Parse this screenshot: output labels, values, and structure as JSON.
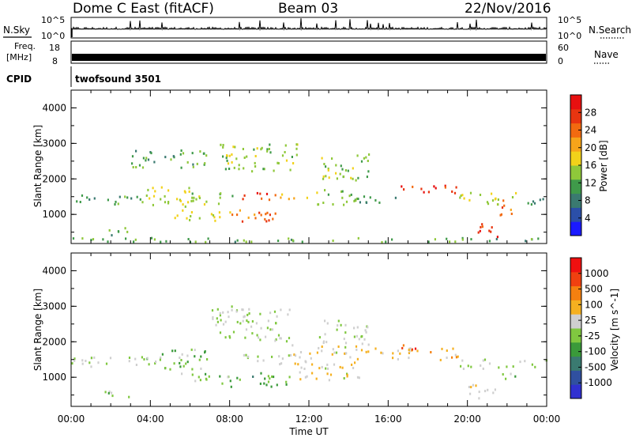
{
  "header": {
    "station": "Dome C East (fitACF)",
    "beam": "Beam 03",
    "date": "22/Nov/2016"
  },
  "panels": {
    "nsky": {
      "label": "N.Sky",
      "ticks_left": [
        "10^5",
        "10^0"
      ],
      "ticks_right": [
        "10^5",
        "10^0"
      ],
      "right_label": "N.Search"
    },
    "freq": {
      "label_top": "Freq.",
      "label_unit": "[MHz]",
      "ticks_left": [
        "18",
        "8"
      ],
      "ticks_right": [
        "60",
        "0"
      ],
      "right_label": "Nave"
    },
    "cpid": {
      "label": "CPID",
      "program": "twofsound 3501"
    }
  },
  "colors": {
    "power": [
      "#1a1aff",
      "#2b4fa8",
      "#3a7a70",
      "#3f9a4a",
      "#8fc83a",
      "#f2d21a",
      "#f7a41a",
      "#f26a10",
      "#e83510",
      "#e81010"
    ],
    "velocity": [
      "#3030d0",
      "#3050a0",
      "#3a7a70",
      "#3a9a3a",
      "#80c840",
      "#cfcfcf",
      "#f5b020",
      "#f58010",
      "#f04010",
      "#f01010"
    ]
  },
  "chart_data": [
    {
      "type": "heatmap",
      "title": "",
      "xlabel": "",
      "ylabel": "Slant Range [km]",
      "colorbar_label": "Power [dB]",
      "colorbar_ticks": [
        "28",
        "24",
        "20",
        "16",
        "12",
        "8",
        "4"
      ],
      "colorbar_range": [
        0,
        32
      ],
      "xlim": [
        "00:00",
        "24:00"
      ],
      "ylim": [
        180,
        4500
      ],
      "x_ticks": [
        "00:00",
        "04:00",
        "08:00",
        "12:00",
        "16:00",
        "20:00",
        "00:00"
      ],
      "y_ticks": [
        "1000",
        "2000",
        "3000",
        "4000"
      ],
      "regions": [
        {
          "t0": 0.0,
          "t1": 1.2,
          "r0": 1250,
          "r1": 1550,
          "v": 10
        },
        {
          "t0": 1.2,
          "t1": 3.5,
          "r0": 1250,
          "r1": 1500,
          "v": 12
        },
        {
          "t0": 3.5,
          "t1": 6.0,
          "r0": 1200,
          "r1": 1800,
          "v": 16
        },
        {
          "t0": 6.0,
          "t1": 8.5,
          "r0": 1250,
          "r1": 1600,
          "v": 14
        },
        {
          "t0": 8.5,
          "t1": 10.5,
          "r0": 1400,
          "r1": 1650,
          "v": 28
        },
        {
          "t0": 10.5,
          "t1": 12.0,
          "r0": 1400,
          "r1": 1600,
          "v": 20
        },
        {
          "t0": 12.0,
          "t1": 14.5,
          "r0": 1250,
          "r1": 1700,
          "v": 14
        },
        {
          "t0": 14.5,
          "t1": 16.5,
          "r0": 1300,
          "r1": 1550,
          "v": 10
        },
        {
          "t0": 16.5,
          "t1": 19.5,
          "r0": 1550,
          "r1": 1800,
          "v": 28
        },
        {
          "t0": 19.5,
          "t1": 22.5,
          "r0": 1250,
          "r1": 1600,
          "v": 16
        },
        {
          "t0": 22.5,
          "t1": 24.0,
          "r0": 1250,
          "r1": 1500,
          "v": 8
        },
        {
          "t0": 7.5,
          "t1": 11.5,
          "r0": 2200,
          "r1": 3000,
          "v": 14
        },
        {
          "t0": 3.0,
          "t1": 7.0,
          "r0": 2300,
          "r1": 2800,
          "v": 12
        },
        {
          "t0": 12.5,
          "t1": 15.0,
          "r0": 1900,
          "r1": 2700,
          "v": 14
        },
        {
          "t0": 8.0,
          "t1": 10.5,
          "r0": 700,
          "r1": 1100,
          "v": 24
        },
        {
          "t0": 5.0,
          "t1": 8.0,
          "r0": 800,
          "r1": 1100,
          "v": 16
        },
        {
          "t0": 1.5,
          "t1": 3.0,
          "r0": 400,
          "r1": 650,
          "v": 12
        },
        {
          "t0": 20.3,
          "t1": 21.5,
          "r0": 350,
          "r1": 800,
          "v": 28
        },
        {
          "t0": 21.5,
          "t1": 22.3,
          "r0": 900,
          "r1": 1400,
          "v": 24
        },
        {
          "t0": 0.0,
          "t1": 24.0,
          "r0": 200,
          "r1": 320,
          "v": 12
        }
      ]
    },
    {
      "type": "heatmap",
      "title": "",
      "xlabel": "Time UT",
      "ylabel": "Slant Range [km]",
      "colorbar_label": "Velocity [m s^-1]",
      "colorbar_ticks": [
        "1000",
        "500",
        "100",
        "25",
        "-25",
        "-100",
        "-500",
        "-1000"
      ],
      "colorbar_range": [
        -1250,
        1250
      ],
      "xlim": [
        "00:00",
        "24:00"
      ],
      "ylim": [
        180,
        4500
      ],
      "x_ticks": [
        "00:00",
        "04:00",
        "08:00",
        "12:00",
        "16:00",
        "20:00",
        "00:00"
      ],
      "y_ticks": [
        "1000",
        "2000",
        "3000",
        "4000"
      ],
      "regions": [
        {
          "t0": 0.0,
          "t1": 3.5,
          "r0": 1250,
          "r1": 1550,
          "v": 0
        },
        {
          "t0": 3.5,
          "t1": 7.0,
          "r0": 1200,
          "r1": 1800,
          "v": -150
        },
        {
          "t0": 7.0,
          "t1": 11.0,
          "r0": 2000,
          "r1": 3000,
          "v": 0
        },
        {
          "t0": 8.5,
          "t1": 11.0,
          "r0": 1350,
          "r1": 1650,
          "v": 0
        },
        {
          "t0": 8.0,
          "t1": 11.0,
          "r0": 700,
          "r1": 1100,
          "v": -300
        },
        {
          "t0": 11.0,
          "t1": 14.5,
          "r0": 900,
          "r1": 1900,
          "v": 200
        },
        {
          "t0": 12.5,
          "t1": 15.0,
          "r0": 1900,
          "r1": 2600,
          "v": 0
        },
        {
          "t0": 14.5,
          "t1": 19.5,
          "r0": 1450,
          "r1": 1800,
          "v": 300
        },
        {
          "t0": 16.5,
          "t1": 18.0,
          "r0": 1750,
          "r1": 1900,
          "v": 800
        },
        {
          "t0": 19.5,
          "t1": 21.5,
          "r0": 1200,
          "r1": 1500,
          "v": 0
        },
        {
          "t0": 20.0,
          "t1": 21.5,
          "r0": 350,
          "r1": 800,
          "v": 150
        },
        {
          "t0": 21.5,
          "t1": 22.5,
          "r0": 900,
          "r1": 1300,
          "v": -200
        },
        {
          "t0": 22.5,
          "t1": 24.0,
          "r0": 1250,
          "r1": 1500,
          "v": 0
        },
        {
          "t0": 1.5,
          "t1": 3.0,
          "r0": 400,
          "r1": 650,
          "v": -150
        },
        {
          "t0": 5.5,
          "t1": 8.0,
          "r0": 800,
          "r1": 1100,
          "v": -100
        }
      ]
    }
  ]
}
